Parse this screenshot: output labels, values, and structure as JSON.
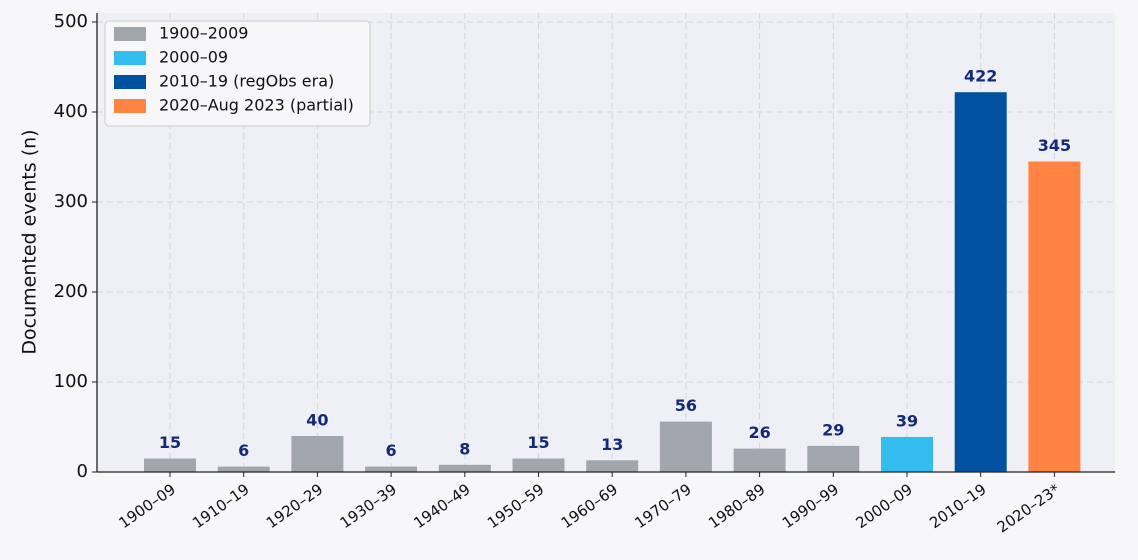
{
  "chart_data": {
    "type": "bar",
    "y_label": "Documented events (n)",
    "categories": [
      "1900–09",
      "1910–19",
      "1920–29",
      "1930–39",
      "1940–49",
      "1950–59",
      "1960–69",
      "1970–79",
      "1980–89",
      "1990–99",
      "2000–09",
      "2010–19",
      "2020–23*"
    ],
    "series": [
      {
        "name": "1900–2009",
        "color": "#a0a6ab",
        "values": [
          15,
          6,
          40,
          6,
          8,
          15,
          13,
          56,
          26,
          29,
          null,
          null,
          null
        ]
      },
      {
        "name": "2000–09",
        "color": "#33bdee",
        "values": [
          null,
          null,
          null,
          null,
          null,
          null,
          null,
          null,
          null,
          null,
          39,
          null,
          null
        ]
      },
      {
        "name": "2010–19 (regObs era)",
        "color": "#0052a0",
        "values": [
          null,
          null,
          null,
          null,
          null,
          null,
          null,
          null,
          null,
          null,
          null,
          422,
          null
        ]
      },
      {
        "name": "2020–Aug 2023 (partial)",
        "color": "#ff8444",
        "values": [
          null,
          null,
          null,
          null,
          null,
          null,
          null,
          null,
          null,
          null,
          null,
          null,
          345
        ]
      }
    ],
    "ylim": [
      0,
      510
    ],
    "yticks": [
      0,
      100,
      200,
      300,
      400,
      500
    ],
    "grid": true,
    "legend": "upper-left"
  }
}
